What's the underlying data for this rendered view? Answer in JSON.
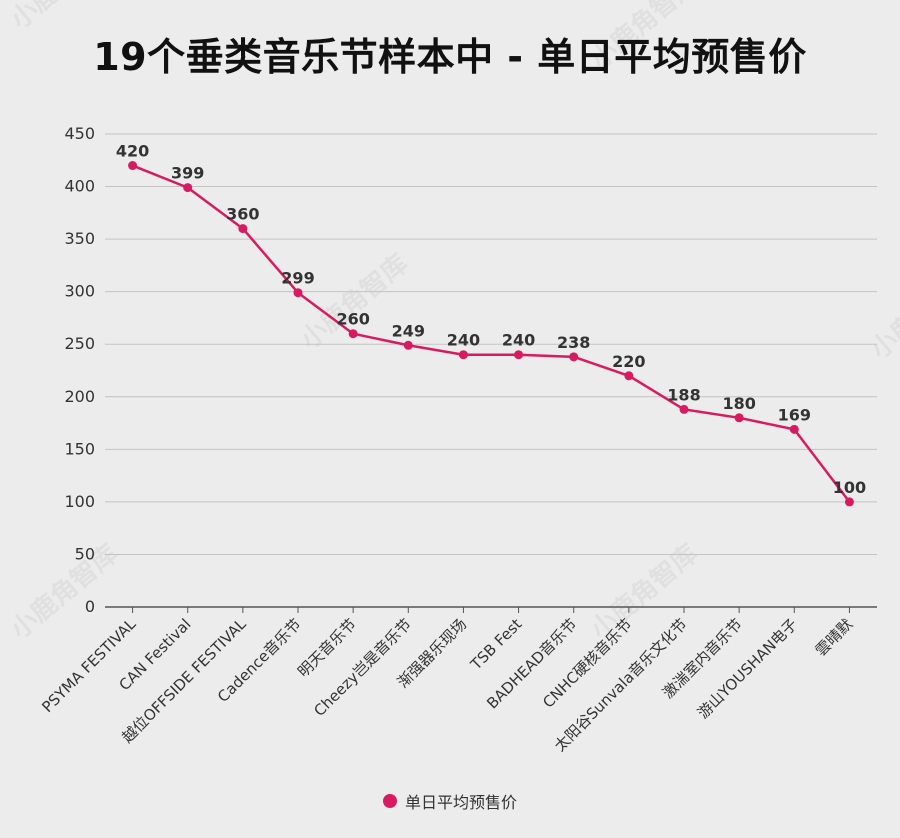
{
  "chart_data": {
    "type": "line",
    "title": "19个垂类音乐节样本中 - 单日平均预售价",
    "categories": [
      "PSYMA FESTIVAL",
      "CAN Festival",
      "越位OFFSIDE FESTIVAL",
      "Cadence音乐节",
      "明天音乐节",
      "Cheezy岂是音乐节",
      "渐强器乐现场",
      "TSB Fest",
      "BADHEAD音乐节",
      "CNHC硬核音乐节",
      "太阳谷Sunvala音乐文化节",
      "激湍室内音乐节",
      "游山YOUSHAN电子",
      "雲晴默"
    ],
    "series": [
      {
        "name": "单日平均预售价",
        "values": [
          420,
          399,
          360,
          299,
          260,
          249,
          240,
          240,
          238,
          220,
          188,
          180,
          169,
          100
        ],
        "color": "#d81b60"
      }
    ],
    "ylim": [
      0,
      450
    ],
    "yticks": [
      0,
      50,
      100,
      150,
      200,
      250,
      300,
      350,
      400,
      450
    ],
    "grid": true,
    "legend_position": "bottom-center",
    "data_labels": true
  },
  "watermark": "小鹿角智库"
}
